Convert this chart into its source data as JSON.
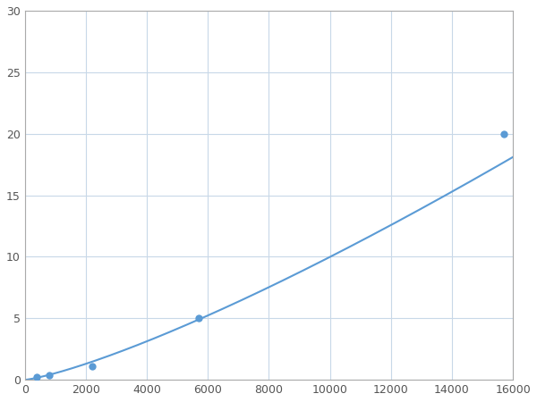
{
  "x_data": [
    400,
    800,
    2200,
    5700,
    15700
  ],
  "y_data": [
    0.2,
    0.4,
    1.1,
    5.0,
    20.0
  ],
  "line_color": "#5b9bd5",
  "marker_color": "#5b9bd5",
  "marker_size": 6,
  "line_width": 1.5,
  "xlim": [
    0,
    16000
  ],
  "ylim": [
    0,
    30
  ],
  "xticks": [
    0,
    2000,
    4000,
    6000,
    8000,
    10000,
    12000,
    14000,
    16000
  ],
  "yticks": [
    0,
    5,
    10,
    15,
    20,
    25,
    30
  ],
  "grid_color": "#c8d8e8",
  "background_color": "#ffffff",
  "spine_color": "#aaaaaa"
}
